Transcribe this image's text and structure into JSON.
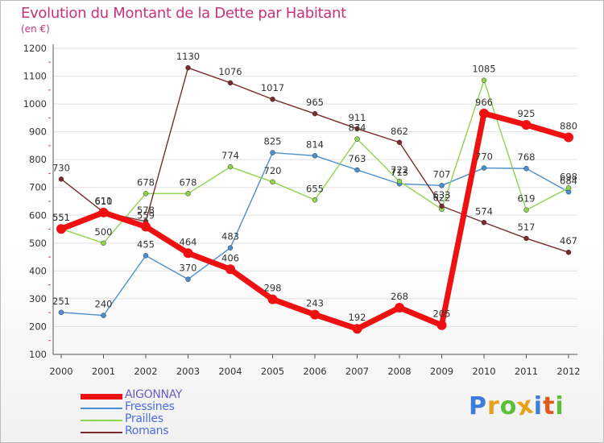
{
  "title": "Evolution du Montant de la Dette par Habitant",
  "subtitle": "(en €)",
  "logo_text": "Proxiti",
  "colors": {
    "title": "#c9327a",
    "grid": "#e0e0e0",
    "axis": "#333333",
    "tick_marks": "#e0607f"
  },
  "chart_data": {
    "type": "line",
    "title": "Evolution du Montant de la Dette par Habitant",
    "subtitle": "(en €)",
    "xlabel": "",
    "ylabel": "",
    "x": [
      "2000",
      "2001",
      "2002",
      "2003",
      "2004",
      "2005",
      "2006",
      "2007",
      "2008",
      "2009",
      "2010",
      "2011",
      "2012"
    ],
    "ylim": [
      100,
      1200
    ],
    "yticks": [
      100,
      200,
      300,
      400,
      500,
      600,
      700,
      800,
      900,
      1000,
      1100,
      1200
    ],
    "grid": "horizontal",
    "legend_position": "bottom-left",
    "series": [
      {
        "name": "AIGONNAY",
        "color": "#ee1111",
        "values": [
          551,
          610,
          559,
          464,
          406,
          298,
          243,
          192,
          268,
          205,
          966,
          925,
          880
        ]
      },
      {
        "name": "Fressines",
        "color": "#4c8fd0",
        "values": [
          251,
          240,
          455,
          370,
          483,
          825,
          814,
          763,
          713,
          707,
          770,
          768,
          684
        ]
      },
      {
        "name": "Prailles",
        "color": "#8ed44e",
        "values": [
          551,
          500,
          678,
          678,
          774,
          720,
          655,
          874,
          722,
          622,
          1085,
          619,
          698
        ]
      },
      {
        "name": "Romans",
        "color": "#7b2b2b",
        "values": [
          730,
          611,
          578,
          1130,
          1076,
          1017,
          965,
          911,
          862,
          633,
          574,
          517,
          467
        ]
      }
    ]
  }
}
